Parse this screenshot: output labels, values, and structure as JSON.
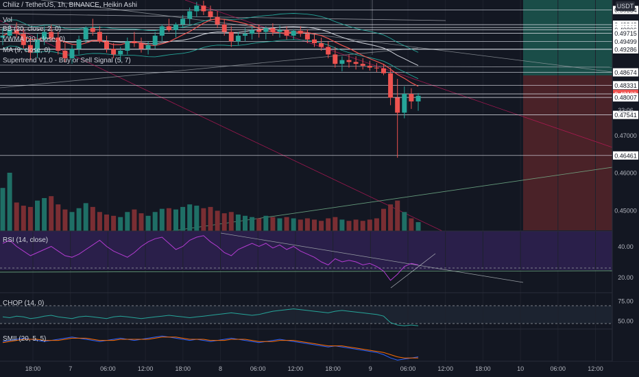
{
  "header": {
    "symbol": "Chiliz / TetherUS, 1h, BINANCE, Heikin Ashi",
    "currency": "USDT"
  },
  "legend": {
    "main": [
      "Vol",
      "BB (20, close, 2, 0)",
      "VWMA (20, close, 0)",
      "MA (9, close, 0)",
      "Supertrend V1.0 - Buy or Sell Signal (5, 7)"
    ],
    "rsi": "RSI (14, close)",
    "chop": "CHOP (14, 0)",
    "smii": "SMII (20, 5, 5)"
  },
  "colors": {
    "background": "#131722",
    "bull": "#26a69a",
    "bear": "#ef5350",
    "rsi_line": "#b43cd2",
    "rsi_band": "#2a1f4a",
    "chop_band": "#1c2330",
    "price_tag": "#ef5350"
  },
  "chart_data": [
    {
      "type": "candlestick",
      "title": "Chiliz / TetherUS, 1h, BINANCE, Heikin Ashi",
      "ylim": [
        0.4445,
        0.506
      ],
      "y_ticks": [
        0.47,
        0.46,
        0.45
      ],
      "x_tick_labels": [
        "18:00",
        "7",
        "06:00",
        "12:00",
        "18:00",
        "8",
        "06:00",
        "12:00",
        "18:00",
        "9",
        "06:00",
        "12:00",
        "18:00",
        "10",
        "06:00",
        "12:00"
      ],
      "price_levels": [
        0.50334,
        0.49943,
        0.49868,
        0.49806,
        0.49715,
        0.49499,
        0.49294,
        0.49286,
        0.48674,
        0.48331,
        0.481,
        0.48007,
        0.47541,
        0.46461
      ],
      "current_price": 0.481,
      "countdown": "33:06",
      "ohlc": [
        [
          0.496,
          0.4985,
          0.494,
          0.4965
        ],
        [
          0.4965,
          0.4995,
          0.495,
          0.498
        ],
        [
          0.498,
          0.5,
          0.496,
          0.497
        ],
        [
          0.497,
          0.4985,
          0.493,
          0.494
        ],
        [
          0.494,
          0.496,
          0.49,
          0.492
        ],
        [
          0.492,
          0.497,
          0.4905,
          0.4955
        ],
        [
          0.4955,
          0.499,
          0.494,
          0.4975
        ],
        [
          0.4975,
          0.4995,
          0.495,
          0.496
        ],
        [
          0.496,
          0.4975,
          0.4915,
          0.4925
        ],
        [
          0.4925,
          0.4945,
          0.4895,
          0.4905
        ],
        [
          0.4905,
          0.494,
          0.489,
          0.493
        ],
        [
          0.493,
          0.4965,
          0.4915,
          0.4955
        ],
        [
          0.4955,
          0.499,
          0.4945,
          0.4985
        ],
        [
          0.4985,
          0.501,
          0.4965,
          0.4975
        ],
        [
          0.4975,
          0.499,
          0.4945,
          0.495
        ],
        [
          0.495,
          0.4965,
          0.492,
          0.493
        ],
        [
          0.493,
          0.4945,
          0.4905,
          0.4915
        ],
        [
          0.4915,
          0.4935,
          0.4895,
          0.4925
        ],
        [
          0.4925,
          0.496,
          0.4915,
          0.495
        ],
        [
          0.495,
          0.4975,
          0.4935,
          0.4945
        ],
        [
          0.4945,
          0.496,
          0.492,
          0.493
        ],
        [
          0.493,
          0.495,
          0.4915,
          0.494
        ],
        [
          0.494,
          0.4975,
          0.493,
          0.4965
        ],
        [
          0.4965,
          0.4995,
          0.495,
          0.499
        ],
        [
          0.499,
          0.501,
          0.4975,
          0.498
        ],
        [
          0.498,
          0.5,
          0.496,
          0.4995
        ],
        [
          0.4995,
          0.502,
          0.4985,
          0.501
        ],
        [
          0.501,
          0.504,
          0.4995,
          0.503
        ],
        [
          0.503,
          0.5055,
          0.5015,
          0.5045
        ],
        [
          0.5045,
          0.5058,
          0.502,
          0.503
        ],
        [
          0.503,
          0.5045,
          0.5005,
          0.5015
        ],
        [
          0.5015,
          0.503,
          0.4985,
          0.4995
        ],
        [
          0.4995,
          0.501,
          0.4965,
          0.4975
        ],
        [
          0.4975,
          0.499,
          0.4935,
          0.495
        ],
        [
          0.495,
          0.4975,
          0.494,
          0.4965
        ],
        [
          0.4965,
          0.4985,
          0.495,
          0.497
        ],
        [
          0.497,
          0.499,
          0.4955,
          0.498
        ],
        [
          0.498,
          0.4995,
          0.496,
          0.4975
        ],
        [
          0.4975,
          0.499,
          0.4955,
          0.4985
        ],
        [
          0.4985,
          0.4998,
          0.4965,
          0.4975
        ],
        [
          0.4975,
          0.4992,
          0.496,
          0.498
        ],
        [
          0.498,
          0.499,
          0.4955,
          0.4965
        ],
        [
          0.4965,
          0.4982,
          0.4955,
          0.4978
        ],
        [
          0.4978,
          0.499,
          0.4962,
          0.497
        ],
        [
          0.497,
          0.4982,
          0.4945,
          0.4955
        ],
        [
          0.4955,
          0.4968,
          0.4935,
          0.4945
        ],
        [
          0.4945,
          0.496,
          0.4925,
          0.4935
        ],
        [
          0.4935,
          0.495,
          0.4905,
          0.4915
        ],
        [
          0.4915,
          0.4935,
          0.488,
          0.489
        ],
        [
          0.489,
          0.491,
          0.487,
          0.49
        ],
        [
          0.49,
          0.4915,
          0.488,
          0.4895
        ],
        [
          0.4895,
          0.491,
          0.4875,
          0.489
        ],
        [
          0.489,
          0.4905,
          0.4875,
          0.4885
        ],
        [
          0.4885,
          0.4898,
          0.4872,
          0.488
        ],
        [
          0.488,
          0.4892,
          0.4868,
          0.4878
        ],
        [
          0.4878,
          0.489,
          0.486,
          0.4865
        ],
        [
          0.4865,
          0.488,
          0.478,
          0.48
        ],
        [
          0.48,
          0.485,
          0.464,
          0.476
        ],
        [
          0.476,
          0.483,
          0.4745,
          0.481
        ],
        [
          0.481,
          0.4825,
          0.477,
          0.479
        ],
        [
          0.479,
          0.4812,
          0.4765,
          0.4805
        ]
      ]
    },
    {
      "type": "bar",
      "title": "Vol",
      "values": [
        68,
        92,
        45,
        40,
        38,
        48,
        52,
        55,
        42,
        34,
        30,
        36,
        44,
        38,
        30,
        26,
        24,
        22,
        30,
        34,
        28,
        24,
        30,
        35,
        36,
        34,
        38,
        42,
        40,
        36,
        38,
        32,
        28,
        30,
        26,
        24,
        22,
        20,
        24,
        22,
        20,
        22,
        20,
        18,
        20,
        18,
        16,
        20,
        22,
        18,
        16,
        18,
        16,
        18,
        20,
        35,
        42,
        48,
        30,
        20,
        14
      ],
      "bull": [
        1,
        1,
        0,
        0,
        0,
        1,
        1,
        0,
        0,
        0,
        1,
        1,
        1,
        0,
        0,
        0,
        0,
        1,
        1,
        0,
        0,
        1,
        1,
        1,
        0,
        1,
        1,
        1,
        1,
        0,
        0,
        0,
        0,
        0,
        1,
        1,
        1,
        0,
        1,
        0,
        1,
        0,
        1,
        0,
        0,
        0,
        0,
        0,
        0,
        1,
        0,
        0,
        0,
        0,
        0,
        0,
        0,
        0,
        1,
        0,
        1
      ]
    },
    {
      "type": "line",
      "title": "RSI (14, close)",
      "ylim": [
        10,
        50
      ],
      "y_ticks": [
        40.0,
        20.0
      ],
      "values": [
        42,
        44,
        40,
        37,
        34,
        36,
        38,
        40,
        37,
        34,
        33,
        35,
        38,
        41,
        44,
        40,
        37,
        35,
        33,
        36,
        40,
        43,
        45,
        46,
        42,
        38,
        40,
        44,
        46,
        47,
        43,
        40,
        36,
        34,
        38,
        40,
        42,
        40,
        42,
        39,
        41,
        38,
        40,
        37,
        35,
        33,
        30,
        28,
        32,
        30,
        31,
        30,
        28,
        29,
        27,
        24,
        18,
        22,
        27,
        29,
        28
      ]
    },
    {
      "type": "line",
      "title": "CHOP (14, 0)",
      "ylim": [
        40,
        85
      ],
      "y_ticks": [
        75.0,
        50.0
      ],
      "values": [
        55,
        54,
        56,
        55,
        53,
        54,
        56,
        57,
        55,
        54,
        53,
        55,
        56,
        55,
        54,
        53,
        55,
        56,
        55,
        54,
        53,
        54,
        55,
        56,
        57,
        56,
        55,
        54,
        55,
        56,
        57,
        58,
        59,
        60,
        59,
        58,
        57,
        58,
        60,
        62,
        63,
        64,
        65,
        64,
        63,
        62,
        61,
        60,
        62,
        63,
        62,
        61,
        60,
        59,
        58,
        56,
        48,
        45,
        44,
        45,
        44
      ]
    },
    {
      "type": "line",
      "title": "SMII (20, 5, 5)",
      "series": [
        {
          "values": [
            3,
            4,
            5,
            6,
            5,
            4,
            3,
            4,
            5,
            6,
            7,
            6,
            5,
            4,
            3,
            4,
            5,
            6,
            5,
            4,
            5,
            6,
            7,
            8,
            7,
            6,
            5,
            4,
            5,
            4,
            3,
            4,
            5,
            6,
            5,
            4,
            3,
            2,
            3,
            4,
            5,
            4,
            3,
            2,
            1,
            0,
            -1,
            -2,
            -1,
            -2,
            -3,
            -4,
            -5,
            -6,
            -7,
            -9,
            -12,
            -14,
            -13,
            -12,
            -11
          ]
        },
        {
          "values": [
            2,
            3,
            4,
            5,
            5,
            5,
            4,
            4,
            4,
            5,
            6,
            6,
            6,
            5,
            4,
            4,
            4,
            5,
            5,
            5,
            5,
            5,
            6,
            7,
            7,
            7,
            6,
            5,
            5,
            5,
            4,
            4,
            4,
            5,
            5,
            5,
            4,
            3,
            3,
            3,
            4,
            4,
            4,
            3,
            2,
            1,
            0,
            -1,
            -1,
            -1,
            -2,
            -3,
            -4,
            -5,
            -6,
            -7,
            -9,
            -11,
            -12,
            -12,
            -12
          ]
        }
      ]
    }
  ]
}
